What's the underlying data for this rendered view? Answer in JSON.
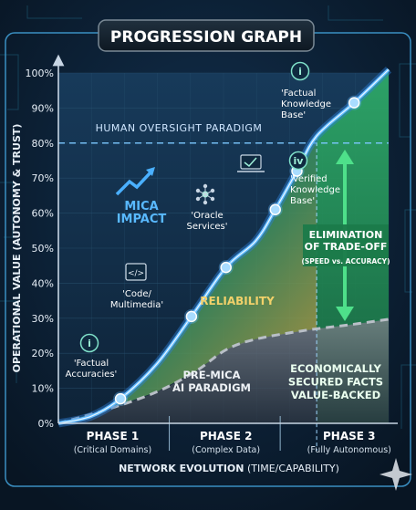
{
  "title": "PROGRESSION GRAPH",
  "chart_data": {
    "type": "line",
    "ylabel": "OPERATIONAL VALUE (AUTONOMY & TRUST)",
    "xlabel_main": "NETWORK EVOLUTION",
    "xlabel_sub": " (TIME/CAPABILITY)",
    "ylim": [
      0,
      100
    ],
    "yticks": [
      "0%",
      "10%",
      "20%",
      "30%",
      "40%",
      "50%",
      "60%",
      "70%",
      "80%",
      "90%",
      "100%"
    ],
    "phases": [
      {
        "name": "PHASE 1",
        "desc": "(Critical Domains)"
      },
      {
        "name": "PHASE 2",
        "desc": "(Complex Data)"
      },
      {
        "name": "PHASE 3",
        "desc": "(Fully Autonomous)"
      }
    ],
    "series": [
      {
        "name": "MICA IMPACT",
        "color": "#5fb8ff",
        "points": [
          [
            0,
            0
          ],
          [
            0.33,
            2
          ],
          [
            0.63,
            7
          ],
          [
            1.0,
            17
          ],
          [
            1.35,
            30.5
          ],
          [
            1.7,
            44.5
          ],
          [
            2.0,
            52
          ],
          [
            2.2,
            61
          ],
          [
            2.42,
            72
          ],
          [
            2.62,
            82
          ],
          [
            3.0,
            91.5
          ],
          [
            3.35,
            101
          ]
        ],
        "markers": [
          0.63,
          1.35,
          1.7,
          2.2,
          2.42,
          3.0
        ]
      },
      {
        "name": "PRE-MICA AI PARADIGM",
        "color": "#b9bfc7",
        "points": [
          [
            0,
            0
          ],
          [
            0.5,
            4
          ],
          [
            1.0,
            9
          ],
          [
            1.4,
            15
          ],
          [
            1.7,
            21
          ],
          [
            2.0,
            24
          ],
          [
            2.5,
            26.5
          ],
          [
            3.0,
            28.3
          ],
          [
            3.35,
            29.7
          ]
        ]
      }
    ],
    "thresholds": [
      {
        "label": "HUMAN OVERSIGHT PARADIGM",
        "value": 80
      }
    ],
    "regions": [
      {
        "label": "RELIABILITY",
        "color": "#e8c55a"
      },
      {
        "label": "ECONOMICALLY SECURED FACTS VALUE-BACKED",
        "lines": [
          "ECONOMICALLY",
          "SECURED FACTS",
          "VALUE-BACKED"
        ],
        "color": "#2ecc71"
      }
    ],
    "annotations": [
      {
        "icon": "info-icon",
        "lines": [
          "'Factual",
          "Accuracies'"
        ]
      },
      {
        "icon": "code-icon",
        "lines": [
          "'Code/",
          "Multimedia'"
        ]
      },
      {
        "icon": "network-icon",
        "lines": [
          "'Oracle",
          "Services'"
        ]
      },
      {
        "icon": "verify-icon",
        "lines": []
      },
      {
        "icon": "roman-iv-icon",
        "lines": [
          "'Verified",
          "Knowledge",
          "Base'"
        ]
      },
      {
        "icon": "info-icon",
        "lines": [
          "'Factual",
          "Knowledge",
          "Base'"
        ]
      }
    ],
    "callout": {
      "title_lines": [
        "ELIMINATION",
        "OF TRADE-OFF"
      ],
      "sub": "(SPEED vs. ACCURACY)"
    },
    "impact_label": [
      "MICA",
      "IMPACT"
    ],
    "premica_label": [
      "PRE-MICA",
      "AI PARADIGM"
    ],
    "grid": true
  }
}
